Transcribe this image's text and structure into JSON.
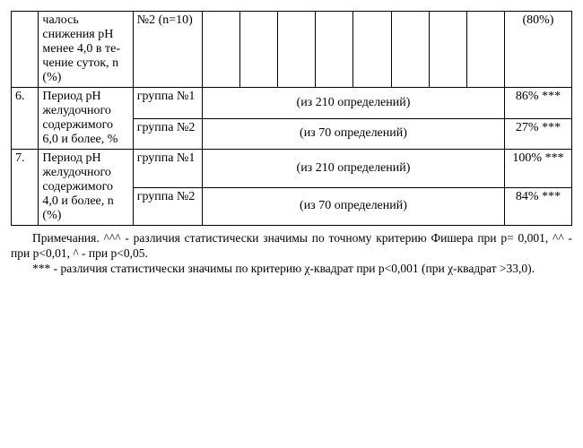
{
  "row5": {
    "param": "чалось снижения pH менее 4,0 в те­чение су­ток, n (%)",
    "group": "№2 (n=10)",
    "last": "(80%)"
  },
  "row6": {
    "num": "6.",
    "param": "Период pH желу­дочного содержи­мого 6,0 и более, %",
    "g1": "группа №1",
    "g1_span": "(из 210 определений)",
    "g1_last": "86% ***",
    "g2": "группа №2",
    "g2_span": "(из 70 определений)",
    "g2_last": "27% ***"
  },
  "row7": {
    "num": "7.",
    "param": "Период pH желу­дочного содержи­мого 4,0 и более, n (%)",
    "g1": "группа №1",
    "g1_span": "(из 210 определений)",
    "g1_last": "100% ***",
    "g2": "группа №2",
    "g2_span": "(из 70 определений)",
    "g2_last": "84% ***"
  },
  "notes1": "Примечания. ^^^ - различия статистически значимы по точному критерию Фишера при p= 0,001, ^^ - при p<0,01, ^ - при p<0,05.",
  "notes2": "*** - различия статистически значимы по критерию χ-квадрат при p<0,001 (при χ-квадрат >33,0)."
}
